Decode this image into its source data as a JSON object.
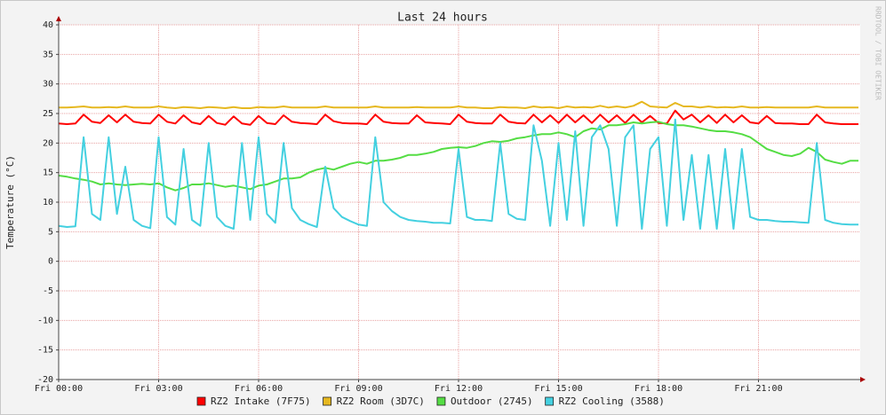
{
  "chart_data": {
    "type": "line",
    "title": "Last 24 hours",
    "y_label": "Temperature (°C)",
    "watermark": "RRDTOOL / TOBI OETIKER",
    "xlim": [
      0,
      24
    ],
    "ylim": [
      -20,
      40
    ],
    "xticks": [
      {
        "value": 0,
        "label": "Fri 00:00"
      },
      {
        "value": 3,
        "label": "Fri 03:00"
      },
      {
        "value": 6,
        "label": "Fri 06:00"
      },
      {
        "value": 9,
        "label": "Fri 09:00"
      },
      {
        "value": 12,
        "label": "Fri 12:00"
      },
      {
        "value": 15,
        "label": "Fri 15:00"
      },
      {
        "value": 18,
        "label": "Fri 18:00"
      },
      {
        "value": 21,
        "label": "Fri 21:00"
      }
    ],
    "yticks": [
      -20,
      -15,
      -10,
      -5,
      0,
      5,
      10,
      15,
      20,
      25,
      30,
      35,
      40
    ],
    "grid": true,
    "x": [
      0,
      0.25,
      0.5,
      0.75,
      1,
      1.25,
      1.5,
      1.75,
      2,
      2.25,
      2.5,
      2.75,
      3,
      3.25,
      3.5,
      3.75,
      4,
      4.25,
      4.5,
      4.75,
      5,
      5.25,
      5.5,
      5.75,
      6,
      6.25,
      6.5,
      6.75,
      7,
      7.25,
      7.5,
      7.75,
      8,
      8.25,
      8.5,
      8.75,
      9,
      9.25,
      9.5,
      9.75,
      10,
      10.25,
      10.5,
      10.75,
      11,
      11.25,
      11.5,
      11.75,
      12,
      12.25,
      12.5,
      12.75,
      13,
      13.25,
      13.5,
      13.75,
      14,
      14.25,
      14.5,
      14.75,
      15,
      15.25,
      15.5,
      15.75,
      16,
      16.25,
      16.5,
      16.75,
      17,
      17.25,
      17.5,
      17.75,
      18,
      18.25,
      18.5,
      18.75,
      19,
      19.25,
      19.5,
      19.75,
      20,
      20.25,
      20.5,
      20.75,
      21,
      21.25,
      21.5,
      21.75,
      22,
      22.25,
      22.5,
      22.75,
      23,
      23.25,
      23.5,
      23.75,
      24
    ],
    "series": [
      {
        "name": "RZ2 Intake (7F75)",
        "color": "#ff0000",
        "values": [
          23.3,
          23.2,
          23.3,
          24.8,
          23.6,
          23.4,
          24.7,
          23.5,
          24.8,
          23.6,
          23.4,
          23.3,
          24.8,
          23.6,
          23.3,
          24.7,
          23.5,
          23.2,
          24.6,
          23.4,
          23.1,
          24.5,
          23.3,
          23.1,
          24.6,
          23.4,
          23.2,
          24.7,
          23.6,
          23.4,
          23.3,
          23.2,
          24.8,
          23.7,
          23.4,
          23.3,
          23.3,
          23.2,
          24.8,
          23.6,
          23.4,
          23.3,
          23.3,
          24.7,
          23.5,
          23.4,
          23.3,
          23.2,
          24.8,
          23.6,
          23.4,
          23.3,
          23.3,
          24.8,
          23.6,
          23.4,
          23.3,
          24.8,
          23.5,
          24.7,
          23.4,
          24.8,
          23.5,
          24.7,
          23.4,
          24.8,
          23.5,
          24.7,
          23.4,
          24.8,
          23.5,
          24.6,
          23.4,
          23.3,
          25.5,
          24.0,
          24.8,
          23.5,
          24.7,
          23.4,
          24.8,
          23.5,
          24.7,
          23.5,
          23.3,
          24.6,
          23.4,
          23.3,
          23.3,
          23.2,
          23.2,
          24.8,
          23.5,
          23.3,
          23.2,
          23.2,
          23.2
        ]
      },
      {
        "name": "RZ2 Room (3D7C)",
        "color": "#e6b820",
        "values": [
          26.0,
          26.0,
          26.1,
          26.2,
          26.0,
          26.0,
          26.1,
          26.0,
          26.2,
          26.0,
          26.0,
          26.0,
          26.2,
          26.0,
          25.9,
          26.1,
          26.0,
          25.9,
          26.1,
          26.0,
          25.9,
          26.1,
          25.9,
          25.9,
          26.1,
          26.0,
          26.0,
          26.2,
          26.0,
          26.0,
          26.0,
          26.0,
          26.2,
          26.0,
          26.0,
          26.0,
          26.0,
          26.0,
          26.2,
          26.0,
          26.0,
          26.0,
          26.0,
          26.1,
          26.0,
          26.0,
          26.0,
          26.0,
          26.2,
          26.0,
          26.0,
          25.9,
          25.9,
          26.1,
          26.0,
          26.0,
          25.9,
          26.2,
          26.0,
          26.1,
          25.9,
          26.2,
          26.0,
          26.1,
          26.0,
          26.3,
          26.0,
          26.2,
          26.0,
          26.3,
          27.0,
          26.2,
          26.1,
          26.0,
          26.8,
          26.2,
          26.2,
          26.0,
          26.2,
          26.0,
          26.1,
          26.0,
          26.2,
          26.0,
          26.0,
          26.1,
          26.0,
          26.0,
          26.0,
          26.0,
          26.0,
          26.2,
          26.0,
          26.0,
          26.0,
          26.0,
          26.0
        ]
      },
      {
        "name": "Outdoor (2745)",
        "color": "#55dd44",
        "values": [
          14.5,
          14.3,
          14,
          13.8,
          13.5,
          13,
          13.2,
          13,
          12.9,
          13,
          13.1,
          13,
          13.2,
          12.5,
          12,
          12.4,
          13,
          13,
          13.2,
          12.9,
          12.6,
          12.8,
          12.5,
          12.2,
          12.8,
          13,
          13.5,
          14,
          14,
          14.2,
          15,
          15.5,
          15.8,
          15.5,
          16,
          16.5,
          16.8,
          16.5,
          17,
          17,
          17.2,
          17.5,
          18,
          18,
          18.2,
          18.5,
          19,
          19.2,
          19.3,
          19.2,
          19.5,
          20,
          20.3,
          20.2,
          20.4,
          20.8,
          21,
          21.3,
          21.5,
          21.5,
          21.8,
          21.5,
          21,
          22,
          22.5,
          22.3,
          23,
          23,
          23.2,
          23.5,
          23.3,
          23.5,
          23.6,
          23.2,
          23,
          23,
          22.8,
          22.5,
          22.2,
          22,
          22,
          21.8,
          21.5,
          21,
          20,
          19,
          18.5,
          18,
          17.8,
          18.2,
          19.2,
          18.5,
          17.2,
          16.8,
          16.5,
          17,
          17
        ]
      },
      {
        "name": "RZ2 Cooling (3588)",
        "color": "#44d0e0",
        "values": [
          6,
          5.8,
          5.9,
          21,
          8,
          7,
          21,
          8,
          16,
          7,
          6,
          5.6,
          21,
          7.5,
          6.2,
          19,
          7,
          6,
          20,
          7.5,
          6,
          5.5,
          20,
          7,
          21,
          8,
          6.5,
          20,
          9,
          7,
          6.3,
          5.8,
          16,
          9,
          7.5,
          6.8,
          6.2,
          6,
          21,
          10,
          8.5,
          7.5,
          7,
          6.8,
          6.7,
          6.5,
          6.5,
          6.4,
          19,
          7.5,
          7,
          7,
          6.8,
          20,
          8,
          7.2,
          7,
          23,
          17,
          6,
          20,
          7,
          22,
          6,
          21,
          23,
          19,
          6,
          21,
          23,
          5.5,
          19,
          21,
          6,
          24,
          7,
          18,
          5.5,
          18,
          5.5,
          19,
          5.5,
          19,
          7.5,
          7,
          7,
          6.8,
          6.7,
          6.7,
          6.6,
          6.5,
          20,
          7,
          6.5,
          6.3,
          6.2,
          6.2
        ]
      }
    ]
  }
}
